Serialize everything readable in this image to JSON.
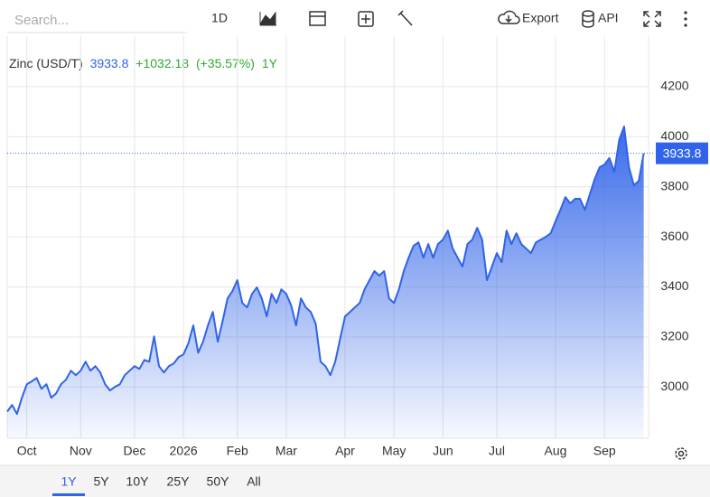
{
  "toolbar": {
    "search": "Search...",
    "interval": "1D",
    "export": "Export",
    "api": "API"
  },
  "ranges": {
    "options": [
      "1Y",
      "5Y",
      "10Y",
      "25Y",
      "50Y",
      "All"
    ],
    "active": 0
  },
  "header": {
    "change": "+1032.18",
    "change_pct": "(+35.57%)",
    "period": "1Y"
  },
  "chart_data": {
    "type": "area",
    "series": [
      {
        "name": "Zinc (USD/T)",
        "color": "#2f63e8",
        "values": [
          2902,
          2928,
          2892,
          2957,
          3011,
          3022,
          3036,
          2993,
          3011,
          2957,
          2975,
          3011,
          3029,
          3065,
          3047,
          3065,
          3101,
          3065,
          3083,
          3058,
          3011,
          2986,
          3000,
          3011,
          3047,
          3065,
          3083,
          3072,
          3108,
          3101,
          3202,
          3083,
          3058,
          3083,
          3094,
          3119,
          3130,
          3174,
          3246,
          3137,
          3181,
          3246,
          3300,
          3181,
          3264,
          3354,
          3383,
          3427,
          3336,
          3318,
          3372,
          3398,
          3354,
          3282,
          3372,
          3336,
          3390,
          3372,
          3325,
          3246,
          3354,
          3318,
          3300,
          3253,
          3101,
          3083,
          3047,
          3101,
          3192,
          3282,
          3300,
          3318,
          3336,
          3390,
          3427,
          3463,
          3445,
          3463,
          3354,
          3336,
          3390,
          3463,
          3517,
          3564,
          3578,
          3517,
          3571,
          3517,
          3571,
          3589,
          3625,
          3553,
          3517,
          3481,
          3571,
          3589,
          3636,
          3589,
          3427,
          3481,
          3535,
          3499,
          3625,
          3571,
          3614,
          3571,
          3553,
          3535,
          3578,
          3589,
          3600,
          3614,
          3662,
          3708,
          3759,
          3734,
          3752,
          3752,
          3708,
          3770,
          3831,
          3878,
          3889,
          3915,
          3860,
          3987,
          4041,
          3878,
          3806,
          3824,
          3933.8
        ]
      }
    ],
    "last_value": 3933.8,
    "xlim": [
      0,
      131
    ],
    "xticks": [
      {
        "value": 4,
        "label": "Oct"
      },
      {
        "value": 15,
        "label": "Nov"
      },
      {
        "value": 26,
        "label": "Dec"
      },
      {
        "value": 36,
        "label": "2026"
      },
      {
        "value": 47,
        "label": "Feb"
      },
      {
        "value": 57,
        "label": "Mar"
      },
      {
        "value": 69,
        "label": "Apr"
      },
      {
        "value": 79,
        "label": "May"
      },
      {
        "value": 89,
        "label": "Jun"
      },
      {
        "value": 100,
        "label": "Jul"
      },
      {
        "value": 112,
        "label": "Aug"
      },
      {
        "value": 122,
        "label": "Sep"
      }
    ],
    "ylim": [
      2795,
      4402
    ],
    "yticks": [
      3000,
      3200,
      3400,
      3600,
      3800,
      4000,
      4200
    ],
    "grid": true
  }
}
